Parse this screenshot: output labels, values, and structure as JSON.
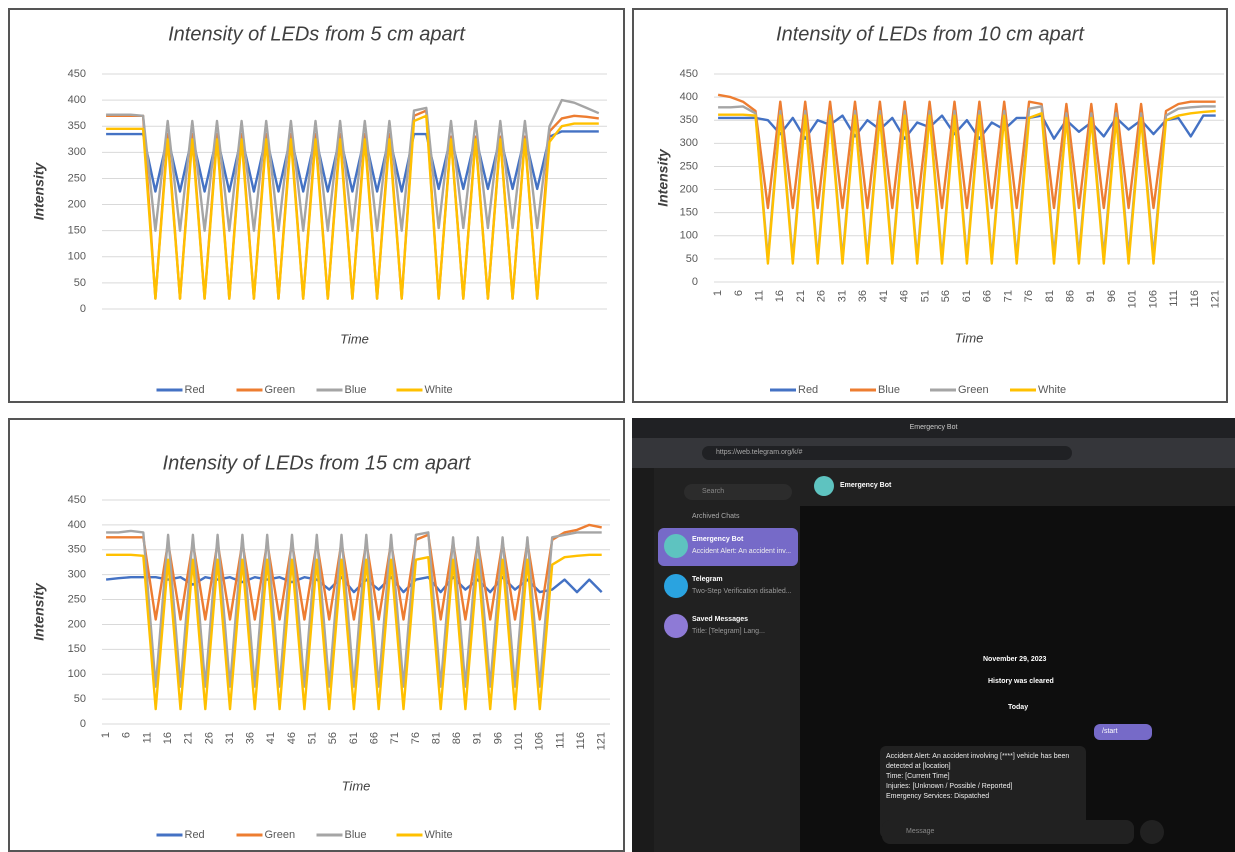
{
  "chart_data": [
    {
      "type": "line",
      "title": "Intensity of LEDs from 5 cm apart",
      "y_label": "Intensity",
      "x_label": "Time",
      "x": [
        1,
        4,
        7,
        10,
        13,
        16,
        19,
        22,
        25,
        28,
        31,
        34,
        37,
        40,
        43,
        46,
        49,
        52,
        55,
        58,
        61,
        64,
        67,
        70,
        73,
        76,
        79,
        82,
        85,
        88,
        91,
        94,
        97,
        100,
        103,
        106,
        109,
        112,
        115,
        118,
        121
      ],
      "xlim": [
        0,
        123
      ],
      "ylim": [
        0,
        450
      ],
      "yticks": [
        0,
        50,
        100,
        150,
        200,
        250,
        300,
        350,
        400,
        450
      ],
      "grid": true,
      "legend": "bottom",
      "series": [
        {
          "name": "Red",
          "color": "#4472c4",
          "values": [
            335,
            335,
            335,
            335,
            225,
            330,
            225,
            330,
            225,
            330,
            225,
            330,
            225,
            330,
            225,
            330,
            225,
            330,
            225,
            330,
            225,
            330,
            225,
            330,
            225,
            335,
            335,
            230,
            330,
            230,
            330,
            230,
            330,
            230,
            330,
            230,
            330,
            340,
            340,
            340,
            340
          ]
        },
        {
          "name": "Green",
          "color": "#ed7d31",
          "values": [
            370,
            370,
            370,
            370,
            20,
            335,
            20,
            335,
            20,
            335,
            20,
            335,
            20,
            335,
            20,
            335,
            20,
            335,
            20,
            335,
            20,
            335,
            20,
            335,
            20,
            370,
            380,
            20,
            330,
            20,
            330,
            20,
            330,
            20,
            330,
            20,
            340,
            365,
            370,
            368,
            365
          ]
        },
        {
          "name": "Blue",
          "color": "#a5a5a5",
          "values": [
            372,
            372,
            372,
            370,
            150,
            360,
            150,
            360,
            150,
            360,
            150,
            360,
            150,
            360,
            150,
            360,
            150,
            360,
            150,
            360,
            150,
            360,
            150,
            360,
            150,
            380,
            385,
            155,
            360,
            155,
            360,
            155,
            360,
            155,
            360,
            155,
            350,
            400,
            395,
            385,
            375
          ]
        },
        {
          "name": "White",
          "color": "#ffc000",
          "values": [
            345,
            345,
            345,
            345,
            20,
            325,
            20,
            325,
            20,
            325,
            20,
            325,
            20,
            325,
            20,
            325,
            20,
            325,
            20,
            325,
            20,
            325,
            20,
            325,
            20,
            360,
            370,
            20,
            325,
            20,
            325,
            20,
            325,
            20,
            325,
            20,
            320,
            350,
            355,
            355,
            355
          ]
        }
      ]
    },
    {
      "type": "line",
      "title": "Intensity of LEDs from 10 cm apart",
      "y_label": "Intensity",
      "x_label": "Time",
      "x": [
        1,
        4,
        7,
        10,
        13,
        16,
        19,
        22,
        25,
        28,
        31,
        34,
        37,
        40,
        43,
        46,
        49,
        52,
        55,
        58,
        61,
        64,
        67,
        70,
        73,
        76,
        79,
        82,
        85,
        88,
        91,
        94,
        97,
        100,
        103,
        106,
        109,
        112,
        115,
        118,
        121
      ],
      "xlim": [
        0,
        123
      ],
      "xticks": [
        1,
        6,
        11,
        16,
        21,
        26,
        31,
        36,
        41,
        46,
        51,
        56,
        61,
        66,
        71,
        76,
        81,
        86,
        91,
        96,
        101,
        106,
        111,
        116,
        121
      ],
      "ylim": [
        0,
        450
      ],
      "yticks": [
        0,
        50,
        100,
        150,
        200,
        250,
        300,
        350,
        400,
        450
      ],
      "grid": true,
      "legend": "bottom",
      "series": [
        {
          "name": "Red",
          "color": "#4472c4",
          "values": [
            355,
            355,
            355,
            355,
            350,
            320,
            355,
            310,
            350,
            340,
            360,
            315,
            350,
            330,
            355,
            310,
            345,
            335,
            360,
            320,
            350,
            310,
            345,
            330,
            355,
            355,
            360,
            310,
            350,
            325,
            345,
            315,
            355,
            330,
            350,
            320,
            350,
            355,
            315,
            360,
            360
          ]
        },
        {
          "name": "Blue",
          "color": "#ed7d31",
          "values": [
            405,
            400,
            390,
            370,
            160,
            390,
            160,
            390,
            160,
            390,
            160,
            390,
            160,
            390,
            160,
            390,
            160,
            390,
            160,
            390,
            160,
            390,
            160,
            390,
            160,
            390,
            385,
            160,
            385,
            160,
            385,
            160,
            385,
            160,
            385,
            160,
            370,
            385,
            390,
            390,
            390
          ]
        },
        {
          "name": "Green",
          "color": "#a5a5a5",
          "values": [
            378,
            378,
            380,
            365,
            50,
            370,
            50,
            370,
            50,
            370,
            50,
            370,
            50,
            370,
            50,
            370,
            50,
            370,
            50,
            370,
            50,
            370,
            50,
            370,
            50,
            375,
            380,
            55,
            365,
            55,
            365,
            55,
            365,
            55,
            365,
            55,
            360,
            375,
            378,
            380,
            380
          ]
        },
        {
          "name": "White",
          "color": "#ffc000",
          "values": [
            362,
            362,
            362,
            360,
            40,
            360,
            40,
            360,
            40,
            360,
            40,
            360,
            40,
            360,
            40,
            360,
            40,
            360,
            40,
            360,
            40,
            360,
            40,
            360,
            40,
            355,
            365,
            40,
            355,
            40,
            355,
            40,
            355,
            40,
            355,
            40,
            350,
            360,
            365,
            368,
            370
          ]
        }
      ]
    },
    {
      "type": "line",
      "title": "Intensity of LEDs from 15 cm apart",
      "y_label": "Intensity",
      "x_label": "Time",
      "x": [
        1,
        4,
        7,
        10,
        13,
        16,
        19,
        22,
        25,
        28,
        31,
        34,
        37,
        40,
        43,
        46,
        49,
        52,
        55,
        58,
        61,
        64,
        67,
        70,
        73,
        76,
        79,
        82,
        85,
        88,
        91,
        94,
        97,
        100,
        103,
        106,
        109,
        112,
        115,
        118,
        121
      ],
      "xlim": [
        0,
        123
      ],
      "xticks": [
        1,
        6,
        11,
        16,
        21,
        26,
        31,
        36,
        41,
        46,
        51,
        56,
        61,
        66,
        71,
        76,
        81,
        86,
        91,
        96,
        101,
        106,
        111,
        116,
        121
      ],
      "ylim": [
        0,
        450
      ],
      "yticks": [
        0,
        50,
        100,
        150,
        200,
        250,
        300,
        350,
        400,
        450
      ],
      "grid": true,
      "legend": "bottom",
      "series": [
        {
          "name": "Red",
          "color": "#4472c4",
          "values": [
            290,
            293,
            295,
            295,
            295,
            290,
            295,
            280,
            295,
            290,
            295,
            285,
            295,
            290,
            295,
            285,
            295,
            290,
            270,
            295,
            265,
            290,
            270,
            295,
            265,
            290,
            295,
            265,
            295,
            270,
            290,
            265,
            295,
            270,
            290,
            265,
            270,
            290,
            265,
            290,
            265
          ]
        },
        {
          "name": "Green",
          "color": "#ed7d31",
          "values": [
            375,
            375,
            375,
            375,
            210,
            365,
            210,
            365,
            210,
            365,
            210,
            365,
            210,
            365,
            210,
            365,
            210,
            365,
            210,
            365,
            210,
            365,
            210,
            365,
            210,
            370,
            380,
            210,
            365,
            210,
            365,
            210,
            365,
            210,
            365,
            210,
            370,
            385,
            390,
            400,
            395
          ]
        },
        {
          "name": "Blue",
          "color": "#a5a5a5",
          "values": [
            385,
            385,
            388,
            385,
            75,
            380,
            75,
            380,
            75,
            380,
            75,
            380,
            75,
            380,
            75,
            380,
            75,
            380,
            75,
            380,
            75,
            380,
            75,
            380,
            75,
            380,
            385,
            75,
            375,
            75,
            375,
            75,
            375,
            75,
            375,
            75,
            375,
            380,
            385,
            385,
            385
          ]
        },
        {
          "name": "White",
          "color": "#ffc000",
          "values": [
            340,
            340,
            340,
            338,
            30,
            330,
            30,
            330,
            30,
            330,
            30,
            330,
            30,
            330,
            30,
            330,
            30,
            330,
            30,
            330,
            30,
            330,
            30,
            330,
            30,
            330,
            335,
            30,
            330,
            30,
            330,
            30,
            330,
            30,
            330,
            30,
            320,
            335,
            338,
            340,
            340
          ]
        }
      ]
    }
  ],
  "screenshot": {
    "window_title": "Emergency Bot",
    "url": "https://web.telegram.org/k/#",
    "search": "Search",
    "archived": "Archived Chats",
    "chats": [
      {
        "name": "Emergency Bot",
        "preview": "Accident Alert: An accident inv..."
      },
      {
        "name": "Telegram",
        "preview": "Two-Step Verification disabled..."
      },
      {
        "name": "Saved Messages",
        "preview": "Title: [Telegram] Lang..."
      }
    ],
    "header": "Emergency Bot",
    "date": "November 29, 2023",
    "history": "History was cleared",
    "today": "Today",
    "outgoing": "/start",
    "message_lines": [
      "Accident Alert: An accident involving [****] vehicle has been detected at [location]",
      "Time: [Current Time]",
      "Injuries: [Unknown / Possible / Reported]",
      "Emergency Services: Dispatched"
    ],
    "input": "Message"
  }
}
